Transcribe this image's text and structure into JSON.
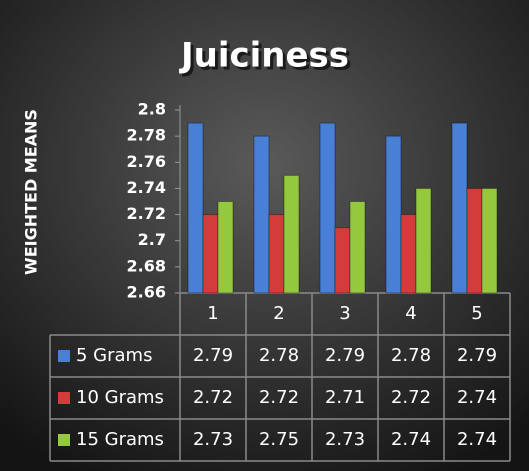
{
  "chart_data": {
    "type": "bar",
    "title": "Juiciness",
    "y_label": "WEIGHTED MEANS",
    "categories": [
      "1",
      "2",
      "3",
      "4",
      "5"
    ],
    "series": [
      {
        "name": "5 Grams",
        "color": "#4a7fd6",
        "values": [
          2.79,
          2.78,
          2.79,
          2.78,
          2.79
        ]
      },
      {
        "name": "10 Grams",
        "color": "#d43c3c",
        "values": [
          2.72,
          2.72,
          2.71,
          2.72,
          2.74
        ]
      },
      {
        "name": "15 Grams",
        "color": "#93c83f",
        "values": [
          2.73,
          2.75,
          2.73,
          2.74,
          2.74
        ]
      }
    ],
    "ylim": [
      2.66,
      2.8
    ],
    "yticks": [
      2.66,
      2.68,
      2.7,
      2.72,
      2.74,
      2.76,
      2.78,
      2.8
    ]
  }
}
